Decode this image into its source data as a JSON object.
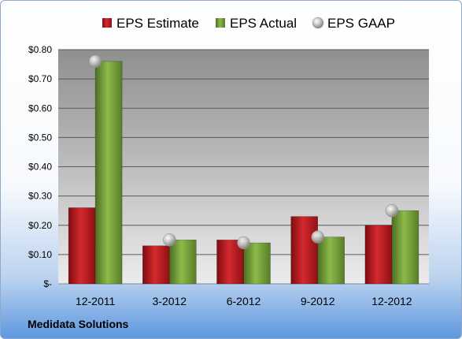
{
  "footer": {
    "company": "Medidata Solutions"
  },
  "chart_data": {
    "type": "bar",
    "title": "",
    "xlabel": "",
    "ylabel": "",
    "categories": [
      "12-2011",
      "3-2012",
      "6-2012",
      "9-2012",
      "12-2012"
    ],
    "series": [
      {
        "name": "EPS Estimate",
        "kind": "bar",
        "color": "#c0191f",
        "values": [
          0.26,
          0.13,
          0.15,
          0.23,
          0.2
        ]
      },
      {
        "name": "EPS Actual",
        "kind": "bar",
        "color": "#79a638",
        "values": [
          0.76,
          0.15,
          0.14,
          0.16,
          0.25
        ]
      },
      {
        "name": "EPS GAAP",
        "kind": "marker",
        "color": "#a9a9a9",
        "values": [
          0.76,
          0.15,
          0.14,
          0.16,
          0.25
        ]
      }
    ],
    "ylim": [
      0,
      0.8
    ],
    "yticks": [
      {
        "value": 0.0,
        "label": "$-"
      },
      {
        "value": 0.1,
        "label": "$0.10"
      },
      {
        "value": 0.2,
        "label": "$0.20"
      },
      {
        "value": 0.3,
        "label": "$0.30"
      },
      {
        "value": 0.4,
        "label": "$0.40"
      },
      {
        "value": 0.5,
        "label": "$0.50"
      },
      {
        "value": 0.6,
        "label": "$0.60"
      },
      {
        "value": 0.7,
        "label": "$0.70"
      },
      {
        "value": 0.8,
        "label": "$0.80"
      }
    ],
    "grid": true,
    "legend": "top"
  }
}
